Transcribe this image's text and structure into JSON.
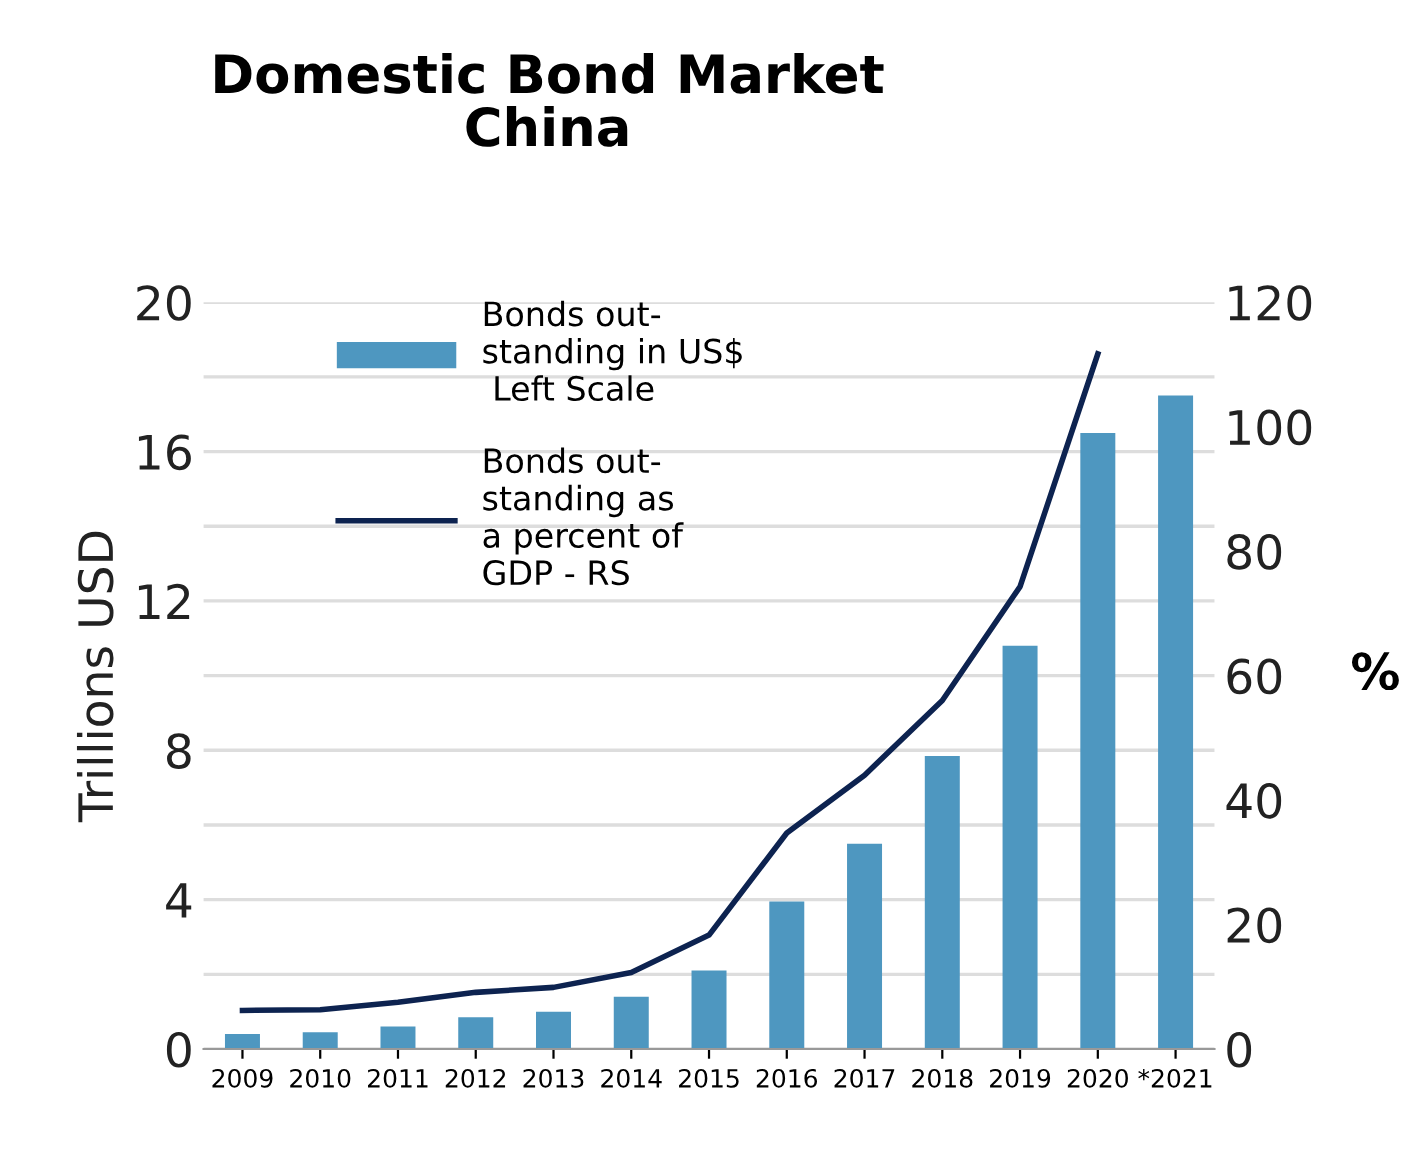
{
  "chart_data": {
    "type": "bar",
    "title": "Domestic Bond Market\nChina",
    "ylabel": "Trillions USD",
    "y2label": "%",
    "categories": [
      "2009",
      "2010",
      "2011",
      "2012",
      "2013",
      "2014",
      "2015",
      "2016",
      "2017",
      "2018",
      "2019",
      "2020",
      "*2021"
    ],
    "series": [
      {
        "name": "Bonds out-\nstanding in US$\n Left Scale",
        "color": "#4e97c0",
        "values": [
          0.4,
          0.45,
          0.6,
          0.85,
          1.0,
          1.4,
          2.1,
          3.95,
          5.5,
          7.85,
          10.8,
          16.5,
          17.5
        ]
      },
      {
        "name": "Bonds out-\nstanding as\na percent of\nGDP - RS",
        "type": "line",
        "axis": "y2",
        "color": "#0d2350",
        "values": [
          6.2,
          6.3,
          7.5,
          9.1,
          9.9,
          12.3,
          18.3,
          34.7,
          44,
          56,
          74.3,
          111.7,
          null
        ]
      }
    ],
    "ylim": [
      0,
      20
    ],
    "yticks": [
      0,
      {
        "value": 2,
        "label": null
      },
      4,
      {
        "value": 6,
        "label": null
      },
      8,
      {
        "value": 10,
        "label": null
      },
      12,
      {
        "value": 14,
        "label": null
      },
      16,
      {
        "value": 18,
        "label": null
      },
      20
    ],
    "y2lim": [
      0,
      120
    ],
    "y2ticks": [
      0,
      20,
      40,
      60,
      80,
      100,
      120
    ],
    "grid": "y",
    "legend": "top left",
    "marker": "none",
    "line_style": "solid"
  }
}
